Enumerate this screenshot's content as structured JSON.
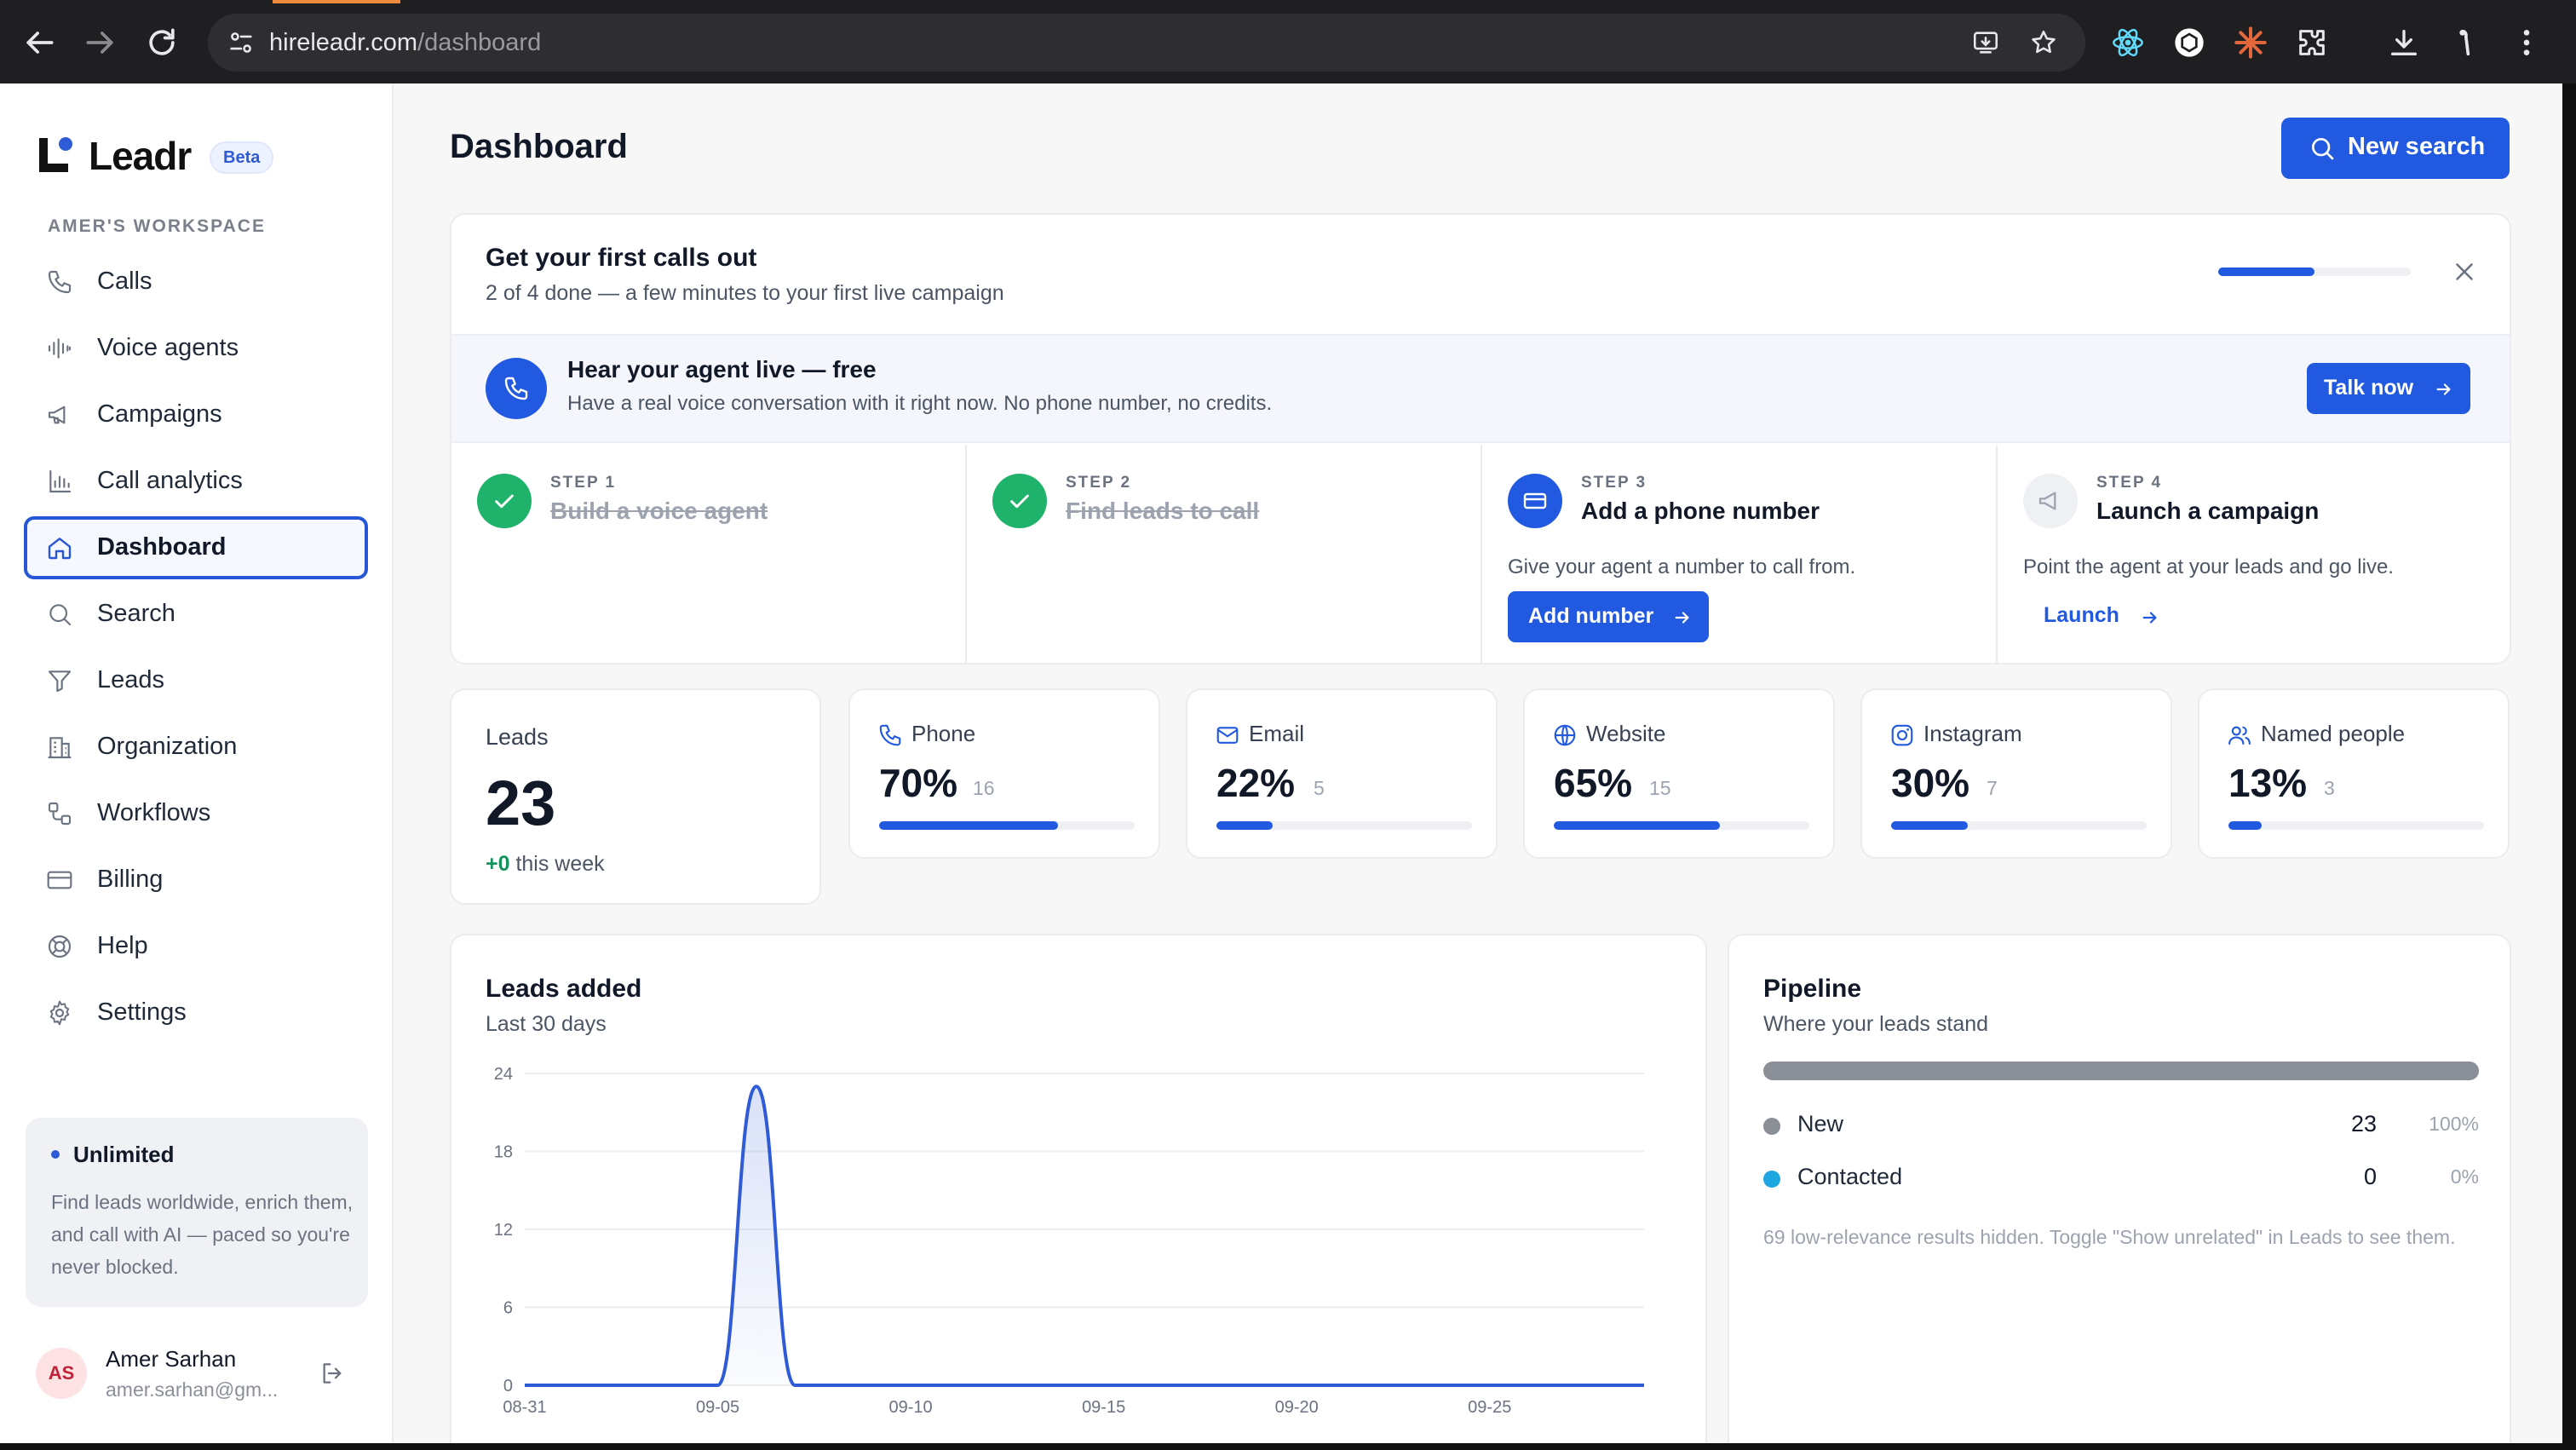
{
  "browser": {
    "url_host": "hireleadr.com",
    "url_path": "/dashboard"
  },
  "sidebar": {
    "brand": "Leadr",
    "badge": "Beta",
    "workspace_label": "AMER'S WORKSPACE",
    "items": [
      {
        "label": "Calls",
        "icon": "phone-icon"
      },
      {
        "label": "Voice agents",
        "icon": "waveform-icon"
      },
      {
        "label": "Campaigns",
        "icon": "megaphone-icon"
      },
      {
        "label": "Call analytics",
        "icon": "bar-chart-icon"
      },
      {
        "label": "Dashboard",
        "icon": "home-icon",
        "active": true
      },
      {
        "label": "Search",
        "icon": "search-icon"
      },
      {
        "label": "Leads",
        "icon": "filter-icon"
      },
      {
        "label": "Organization",
        "icon": "building-icon"
      },
      {
        "label": "Workflows",
        "icon": "workflow-icon"
      },
      {
        "label": "Billing",
        "icon": "credit-card-icon"
      },
      {
        "label": "Help",
        "icon": "lifebuoy-icon"
      },
      {
        "label": "Settings",
        "icon": "gear-icon"
      }
    ],
    "plan": {
      "title": "Unlimited",
      "description": "Find leads worldwide, enrich them, and call with AI — paced so you're never blocked."
    },
    "user": {
      "initials": "AS",
      "name": "Amer Sarhan",
      "email": "amer.sarhan@gm..."
    }
  },
  "header": {
    "title": "Dashboard",
    "new_search_label": "New search"
  },
  "onboarding": {
    "title": "Get your first calls out",
    "subtitle": "2 of 4 done — a few minutes to your first live campaign",
    "progress_fraction": 0.5,
    "live": {
      "title": "Hear your agent live — free",
      "subtitle": "Have a real voice conversation with it right now. No phone number, no credits.",
      "button": "Talk now"
    },
    "steps": [
      {
        "num": "STEP 1",
        "name": "Build a voice agent",
        "status": "done"
      },
      {
        "num": "STEP 2",
        "name": "Find leads to call",
        "status": "done"
      },
      {
        "num": "STEP 3",
        "name": "Add a phone number",
        "status": "current",
        "desc": "Give your agent a number to call from.",
        "action": "Add number"
      },
      {
        "num": "STEP 4",
        "name": "Launch a campaign",
        "status": "todo",
        "desc": "Point the agent at your leads and go live.",
        "action": "Launch"
      }
    ]
  },
  "stats": {
    "leads": {
      "label": "Leads",
      "value": "23",
      "delta": "+0",
      "delta_suffix": " this week"
    },
    "channels": [
      {
        "label": "Phone",
        "pct": "70%",
        "count": "16",
        "fraction": 0.7,
        "icon": "phone-icon"
      },
      {
        "label": "Email",
        "pct": "22%",
        "count": "5",
        "fraction": 0.22,
        "icon": "mail-icon"
      },
      {
        "label": "Website",
        "pct": "65%",
        "count": "15",
        "fraction": 0.65,
        "icon": "globe-icon"
      },
      {
        "label": "Instagram",
        "pct": "30%",
        "count": "7",
        "fraction": 0.3,
        "icon": "instagram-icon"
      },
      {
        "label": "Named people",
        "pct": "13%",
        "count": "3",
        "fraction": 0.13,
        "icon": "users-icon"
      }
    ]
  },
  "leads_added": {
    "title": "Leads added",
    "subtitle": "Last 30 days"
  },
  "chart_data": {
    "type": "area",
    "title": "Leads added",
    "subtitle": "Last 30 days",
    "xlabel": "",
    "ylabel": "",
    "x": [
      "08-31",
      "09-01",
      "09-02",
      "09-03",
      "09-04",
      "09-05",
      "09-06",
      "09-07",
      "09-08",
      "09-09",
      "09-10",
      "09-11",
      "09-12",
      "09-13",
      "09-14",
      "09-15",
      "09-16",
      "09-17",
      "09-18",
      "09-19",
      "09-20",
      "09-21",
      "09-22",
      "09-23",
      "09-24",
      "09-25",
      "09-26",
      "09-27",
      "09-28",
      "09-29"
    ],
    "values": [
      0,
      0,
      0,
      0,
      0,
      0,
      23,
      0,
      0,
      0,
      0,
      0,
      0,
      0,
      0,
      0,
      0,
      0,
      0,
      0,
      0,
      0,
      0,
      0,
      0,
      0,
      0,
      0,
      0,
      0
    ],
    "x_ticks": [
      "08-31",
      "09-05",
      "09-10",
      "09-15",
      "09-20",
      "09-25"
    ],
    "y_ticks": [
      "0",
      "6",
      "12",
      "18",
      "24"
    ],
    "ylim": [
      0,
      24
    ],
    "grid": true,
    "color": "#2f5bd6"
  },
  "pipeline": {
    "title": "Pipeline",
    "subtitle": "Where your leads stand",
    "rows": [
      {
        "name": "New",
        "count": "23",
        "pct": "100%",
        "fraction": 1.0,
        "color": "#8b8f98"
      },
      {
        "name": "Contacted",
        "count": "0",
        "pct": "0%",
        "fraction": 0.0,
        "color": "#1ea7e1"
      }
    ],
    "note": "69 low-relevance results hidden. Toggle \"Show unrelated\" in Leads to see them."
  }
}
